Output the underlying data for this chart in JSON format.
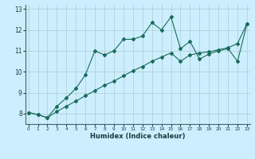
{
  "xlabel": "Humidex (Indice chaleur)",
  "bg_color": "#cceeff",
  "line_color": "#1a6b5a",
  "x_jagged": [
    0,
    1,
    2,
    3,
    4,
    5,
    6,
    7,
    8,
    9,
    10,
    11,
    12,
    13,
    14,
    15,
    16,
    17,
    18,
    19,
    20,
    21,
    22,
    23
  ],
  "y_jagged": [
    8.05,
    7.95,
    7.8,
    8.35,
    8.75,
    9.2,
    9.85,
    11.0,
    10.8,
    11.0,
    11.55,
    11.55,
    11.7,
    12.35,
    12.0,
    12.62,
    11.1,
    11.45,
    10.6,
    10.85,
    11.0,
    11.1,
    10.5,
    12.3
  ],
  "x_smooth": [
    0,
    1,
    2,
    3,
    4,
    5,
    6,
    7,
    8,
    9,
    10,
    11,
    12,
    13,
    14,
    15,
    16,
    17,
    18,
    19,
    20,
    21,
    22,
    23
  ],
  "y_smooth": [
    8.05,
    7.95,
    7.8,
    8.1,
    8.35,
    8.6,
    8.85,
    9.1,
    9.35,
    9.55,
    9.8,
    10.05,
    10.25,
    10.5,
    10.7,
    10.9,
    10.5,
    10.8,
    10.9,
    10.95,
    11.05,
    11.15,
    11.35,
    12.3
  ],
  "xlim": [
    -0.3,
    23.3
  ],
  "ylim": [
    7.5,
    13.2
  ],
  "yticks": [
    8,
    9,
    10,
    11,
    12,
    13
  ],
  "xticks": [
    0,
    1,
    2,
    3,
    4,
    5,
    6,
    7,
    8,
    9,
    10,
    11,
    12,
    13,
    14,
    15,
    16,
    17,
    18,
    19,
    20,
    21,
    22,
    23
  ],
  "grid_color": "#aacccc",
  "tick_color": "#1a4040",
  "xlabel_color": "#1a3a3a"
}
